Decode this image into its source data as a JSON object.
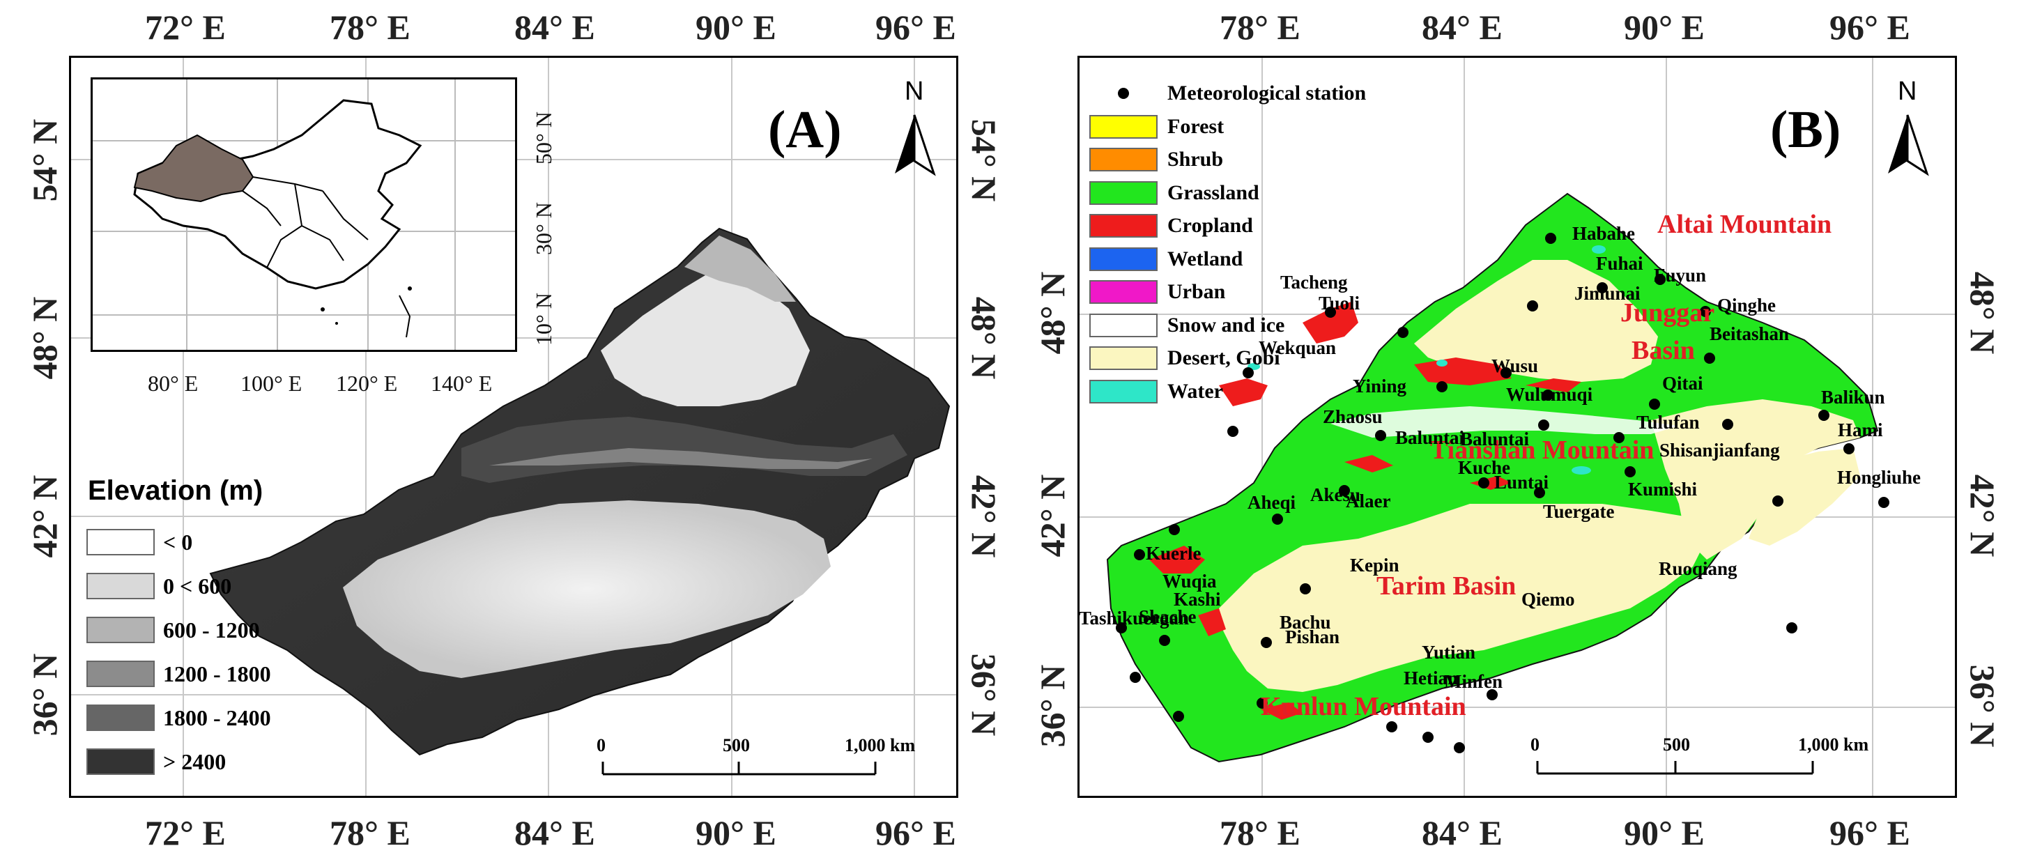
{
  "panel_a": {
    "label": "(A)",
    "north": "N",
    "top_lon": [
      "72° E",
      "78° E",
      "84° E",
      "90° E",
      "96° E"
    ],
    "bottom_lon": [
      "72° E",
      "78° E",
      "84° E",
      "90° E",
      "96° E"
    ],
    "left_lat": [
      "54° N",
      "48° N",
      "42° N",
      "36° N"
    ],
    "right_lat": [
      "54° N",
      "48° N",
      "42° N",
      "36° N"
    ],
    "inset": {
      "lon_labels": [
        "80° E",
        "100° E",
        "120° E",
        "140° E"
      ],
      "lat_labels": [
        "50° N",
        "30° N",
        "10° N"
      ],
      "highlight_color": "#7a6a62"
    },
    "elevation_legend": {
      "title": "Elevation (m)",
      "items": [
        {
          "label": "< 0",
          "color": "#ffffff"
        },
        {
          "label": "0 < 600",
          "color": "#d9d9d9"
        },
        {
          "label": "600 - 1200",
          "color": "#b3b3b3"
        },
        {
          "label": "1200 - 1800",
          "color": "#8c8c8c"
        },
        {
          "label": "1800 - 2400",
          "color": "#666666"
        },
        {
          "label": "> 2400",
          "color": "#333333"
        }
      ]
    },
    "scale": {
      "ticks": [
        "0",
        "500",
        "1,000 km"
      ]
    }
  },
  "panel_b": {
    "label": "(B)",
    "north": "N",
    "top_lon": [
      "78° E",
      "84° E",
      "90° E",
      "96° E"
    ],
    "bottom_lon": [
      "78° E",
      "84° E",
      "90° E",
      "96° E"
    ],
    "left_lat": [
      "48° N",
      "42° N",
      "36° N"
    ],
    "right_lat": [
      "48° N",
      "42° N",
      "36° N"
    ],
    "legend": [
      {
        "label": "Meteorological station",
        "type": "dot",
        "color": "#000000"
      },
      {
        "label": "Forest",
        "color": "#ffff00"
      },
      {
        "label": "Shrub",
        "color": "#ff8c00"
      },
      {
        "label": "Grassland",
        "color": "#22e61e"
      },
      {
        "label": "Cropland",
        "color": "#ee1c1c"
      },
      {
        "label": "Wetland",
        "color": "#1c64f0"
      },
      {
        "label": "Urban",
        "color": "#f018c8"
      },
      {
        "label": "Snow and ice",
        "color": "#ffffff"
      },
      {
        "label": "Desert, Gobi",
        "color": "#fbf6c0"
      },
      {
        "label": "Water",
        "color": "#2ee6c8"
      }
    ],
    "regions": [
      "Altai Mountain",
      "Junggar",
      "Basin",
      "Tianshan Mountain",
      "Tarim Basin",
      "Kunlun Mountain"
    ],
    "stations": [
      "Habahe",
      "Fuhai",
      "Fuyun",
      "Jimunai",
      "Qinghe",
      "Tacheng",
      "Tuoli",
      "Beitashan",
      "Wekquan",
      "Wusu",
      "Yining",
      "Wulumuqi",
      "Qitai",
      "Balikun",
      "Zhaosu",
      "Baluntai",
      "Tulufan",
      "Hami",
      "Shisanjianfang",
      "Baluntai",
      "Kuche",
      "Luntai",
      "Kumishi",
      "Hongliuhe",
      "Aheqi",
      "Akesu",
      "Alaer",
      "Tuergate",
      "Kepin",
      "Kuerle",
      "Wuqia",
      "Kashi",
      "Bachu",
      "Ruoqiang",
      "Shache",
      "Qiemo",
      "Tashikuergan",
      "Pishan",
      "Yutian",
      "Hetian",
      "Minfen"
    ],
    "scale": {
      "ticks": [
        "0",
        "500",
        "1,000 km"
      ]
    }
  }
}
